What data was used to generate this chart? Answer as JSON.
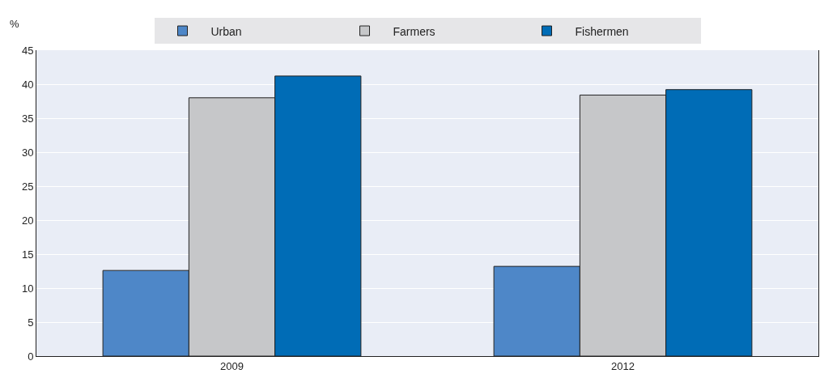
{
  "chart_data": {
    "type": "bar",
    "ylabel": "%",
    "categories": [
      "2009",
      "2012"
    ],
    "series": [
      {
        "name": "Urban",
        "color": "#4e87c8",
        "values": [
          12.6,
          13.2
        ]
      },
      {
        "name": "Farmers",
        "color": "#c6c7c9",
        "values": [
          38.0,
          38.4
        ]
      },
      {
        "name": "Fishermen",
        "color": "#006cb6",
        "values": [
          41.2,
          39.2
        ]
      }
    ],
    "ylim": [
      0,
      45
    ],
    "yticks": [
      0,
      5,
      10,
      15,
      20,
      25,
      30,
      35,
      40,
      45
    ],
    "grid": "y",
    "legend": "top"
  }
}
